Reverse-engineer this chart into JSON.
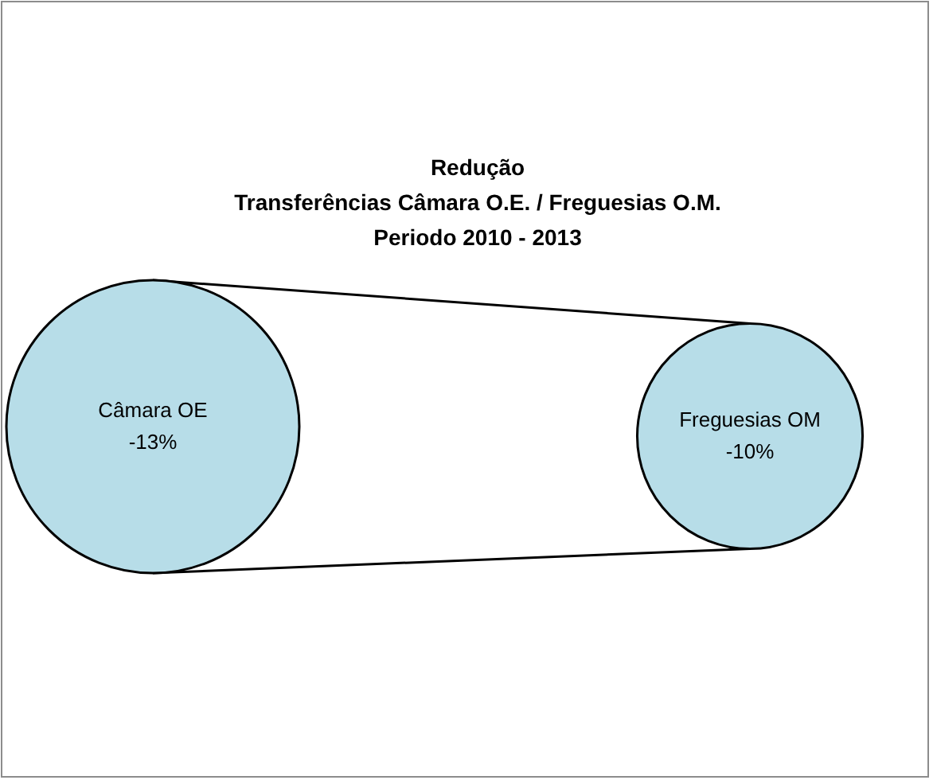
{
  "chart_data": {
    "type": "other",
    "title": "Redução\nTransferências Câmara O.E. / Freguesias O.M.\nPeriodo 2010 - 2013",
    "categories": [
      "Câmara OE",
      "Freguesias OM"
    ],
    "values": [
      -13,
      -10
    ],
    "value_labels": [
      "-13%",
      "-10%"
    ],
    "color": "#b7dde8"
  }
}
